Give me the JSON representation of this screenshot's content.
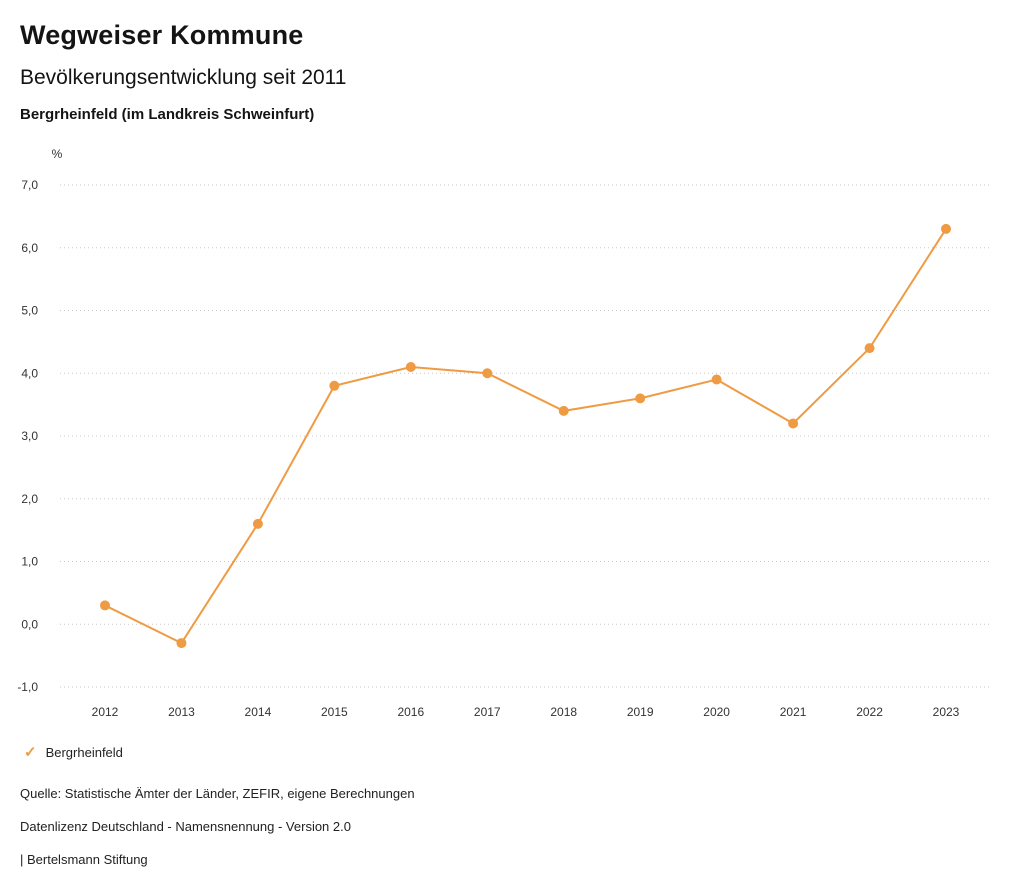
{
  "header": {
    "title": "Wegweiser Kommune",
    "subtitle": "Bevölkerungsentwicklung seit 2011",
    "region": "Bergrheinfeld (im Landkreis Schweinfurt)"
  },
  "chart_data": {
    "type": "line",
    "title": "Bevölkerungsentwicklung seit 2011",
    "unit_label": "%",
    "categories": [
      "2012",
      "2013",
      "2014",
      "2015",
      "2016",
      "2017",
      "2018",
      "2019",
      "2020",
      "2021",
      "2022",
      "2023"
    ],
    "series": [
      {
        "name": "Bergrheinfeld",
        "color": "#EF9B43",
        "values": [
          0.3,
          -0.3,
          1.6,
          3.8,
          4.1,
          4.0,
          3.4,
          3.6,
          3.9,
          3.2,
          4.4,
          6.3
        ]
      }
    ],
    "ylim": [
      -1.0,
      7.0
    ],
    "yticks": [
      {
        "value": 7.0,
        "label": "7,0"
      },
      {
        "value": 6.0,
        "label": "6,0"
      },
      {
        "value": 5.0,
        "label": "5,0"
      },
      {
        "value": 4.0,
        "label": "4,0"
      },
      {
        "value": 3.0,
        "label": "3,0"
      },
      {
        "value": 2.0,
        "label": "2,0"
      },
      {
        "value": 1.0,
        "label": "1,0"
      },
      {
        "value": 0.0,
        "label": "0,0"
      },
      {
        "value": -1.0,
        "label": "-1,0"
      }
    ],
    "grid": "dotted-horizontal",
    "legend_position": "bottom-left"
  },
  "legend": {
    "check_icon": "✓",
    "label": "Bergrheinfeld"
  },
  "footer": {
    "source": "Quelle: Statistische Ämter der Länder, ZEFIR, eigene Berechnungen",
    "license": "Datenlizenz Deutschland - Namensnennung - Version 2.0",
    "attribution": "| Bertelsmann Stiftung"
  }
}
